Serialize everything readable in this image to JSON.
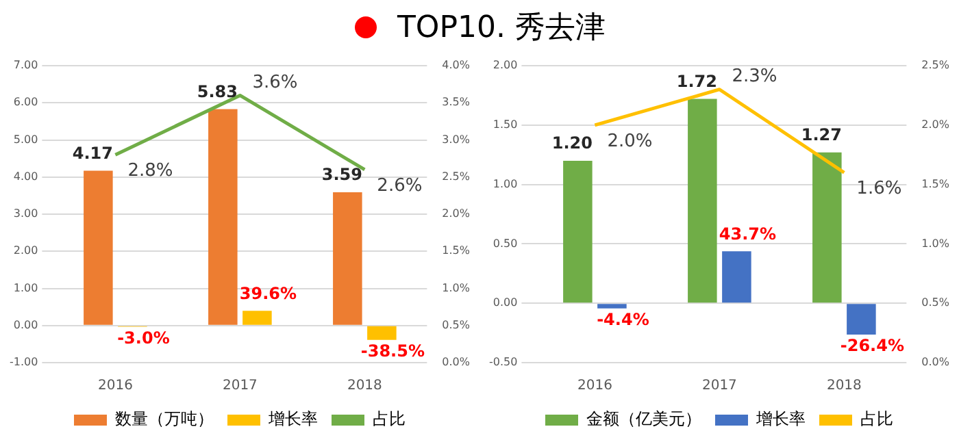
{
  "chart_data": [
    {
      "type": "bar",
      "title": "TOP10. 秀去津",
      "categories": [
        "2016",
        "2017",
        "2018"
      ],
      "series": [
        {
          "name": "数量（万吨）",
          "color": "#ed7d31",
          "values": [
            4.17,
            5.83,
            3.59
          ],
          "value_labels": [
            "4.17",
            "5.83",
            "3.59"
          ]
        },
        {
          "name": "增长率",
          "color": "#ffc000",
          "values": [
            -0.03,
            0.396,
            -0.385
          ],
          "value_labels": [
            "-3.0%",
            "39.6%",
            "-38.5%"
          ]
        },
        {
          "name": "占比",
          "type": "line",
          "axis": "y2",
          "color": "#70ad47",
          "values": [
            2.8,
            3.6,
            2.6
          ],
          "value_labels": [
            "2.8%",
            "3.6%",
            "2.6%"
          ]
        }
      ],
      "ylim": [
        -1,
        7
      ],
      "yticks": [
        {
          "value": -1,
          "label": "-1.00"
        },
        {
          "value": 0,
          "label": "0.00"
        },
        {
          "value": 1,
          "label": "1.00"
        },
        {
          "value": 2,
          "label": "2.00"
        },
        {
          "value": 3,
          "label": "3.00"
        },
        {
          "value": 4,
          "label": "4.00"
        },
        {
          "value": 5,
          "label": "5.00"
        },
        {
          "value": 6,
          "label": "6.00"
        },
        {
          "value": 7,
          "label": "7.00"
        }
      ],
      "y2lim": [
        0,
        4
      ],
      "y2ticks": [
        {
          "value": 0,
          "label": "0.0%"
        },
        {
          "value": 0.5,
          "label": "0.5%"
        },
        {
          "value": 1,
          "label": "1.0%"
        },
        {
          "value": 1.5,
          "label": "1.5%"
        },
        {
          "value": 2,
          "label": "2.0%"
        },
        {
          "value": 2.5,
          "label": "2.5%"
        },
        {
          "value": 3,
          "label": "3.0%"
        },
        {
          "value": 3.5,
          "label": "3.5%"
        },
        {
          "value": 4,
          "label": "4.0%"
        }
      ],
      "grid": "y",
      "legend": "bottom",
      "marker": "none"
    },
    {
      "type": "bar",
      "categories": [
        "2016",
        "2017",
        "2018"
      ],
      "series": [
        {
          "name": "金额（亿美元）",
          "color": "#70ad47",
          "values": [
            1.2,
            1.72,
            1.27
          ],
          "value_labels": [
            "1.20",
            "1.72",
            "1.27"
          ]
        },
        {
          "name": "增长率",
          "color": "#4472c4",
          "values": [
            -0.044,
            0.437,
            -0.264
          ],
          "value_labels": [
            "-4.4%",
            "43.7%",
            "-26.4%"
          ]
        },
        {
          "name": "占比",
          "type": "line",
          "axis": "y2",
          "color": "#ffc000",
          "values": [
            2.0,
            2.3,
            1.6
          ],
          "value_labels": [
            "2.0%",
            "2.3%",
            "1.6%"
          ]
        }
      ],
      "ylim": [
        -0.5,
        2
      ],
      "yticks": [
        {
          "value": -0.5,
          "label": "-0.50"
        },
        {
          "value": 0,
          "label": "0.00"
        },
        {
          "value": 0.5,
          "label": "0.50"
        },
        {
          "value": 1,
          "label": "1.00"
        },
        {
          "value": 1.5,
          "label": "1.50"
        },
        {
          "value": 2,
          "label": "2.00"
        }
      ],
      "y2lim": [
        0,
        2.5
      ],
      "y2ticks": [
        {
          "value": 0,
          "label": "0.0%"
        },
        {
          "value": 0.5,
          "label": "0.5%"
        },
        {
          "value": 1,
          "label": "1.0%"
        },
        {
          "value": 1.5,
          "label": "1.5%"
        },
        {
          "value": 2,
          "label": "2.0%"
        },
        {
          "value": 2.5,
          "label": "2.5%"
        }
      ],
      "grid": "y",
      "legend": "bottom",
      "marker": "none"
    }
  ]
}
